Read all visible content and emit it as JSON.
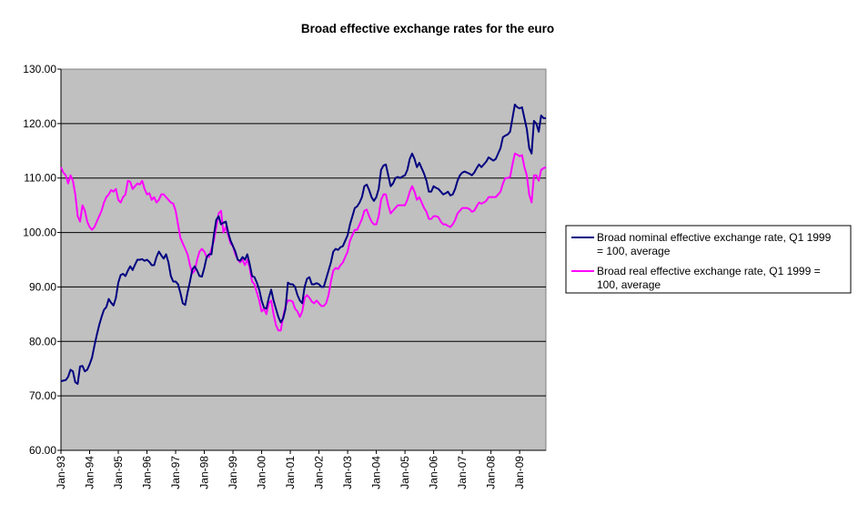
{
  "chart_data": {
    "type": "line",
    "title": "Broad effective exchange rates for the euro",
    "xlabel": "",
    "ylabel": "",
    "ylim": [
      60,
      130
    ],
    "yticks": [
      "60.00",
      "70.00",
      "80.00",
      "90.00",
      "100.00",
      "110.00",
      "120.00",
      "130.00"
    ],
    "xticks": [
      "Jan-93",
      "Jan-94",
      "Jan-95",
      "Jan-96",
      "Jan-97",
      "Jan-98",
      "Jan-99",
      "Jan-00",
      "Jan-01",
      "Jan-02",
      "Jan-03",
      "Jan-04",
      "Jan-05",
      "Jan-06",
      "Jan-07",
      "Jan-08",
      "Jan-09"
    ],
    "x_start": "Jan-93",
    "x_end": "Dec-09",
    "frequency": "monthly",
    "grid": true,
    "plot_background": "#C0C0C0",
    "legend_position": "right",
    "series": [
      {
        "name": "Broad nominal effective exchange rate, Q1 1999 = 100, average",
        "color": "#000080",
        "values": [
          72.7,
          72.8,
          72.9,
          73.5,
          74.8,
          74.5,
          72.5,
          72.2,
          75.4,
          75.5,
          74.5,
          74.8,
          75.8,
          77.0,
          79.2,
          81.2,
          83.0,
          84.5,
          85.8,
          86.3,
          87.8,
          87.1,
          86.6,
          88.0,
          90.8,
          92.2,
          92.4,
          92.0,
          93.0,
          93.8,
          93.1,
          94.1,
          95.0,
          95.0,
          95.1,
          94.8,
          95.0,
          94.6,
          94.0,
          94.0,
          95.5,
          96.5,
          95.8,
          95.2,
          96.0,
          94.5,
          92.0,
          91.0,
          91.0,
          90.5,
          88.9,
          87.0,
          86.7,
          89.0,
          91.0,
          93.2,
          93.8,
          93.0,
          92.0,
          91.9,
          93.5,
          95.5,
          96.0,
          96.0,
          99.5,
          102.3,
          103.0,
          101.5,
          101.8,
          102.0,
          100.0,
          98.5,
          97.5,
          96.5,
          95.0,
          94.8,
          95.5,
          95.0,
          96.0,
          94.2,
          92.0,
          91.8,
          90.8,
          89.5,
          87.5,
          86.2,
          86.0,
          88.0,
          89.5,
          87.5,
          86.0,
          84.5,
          83.5,
          84.2,
          86.0,
          90.8,
          90.5,
          90.5,
          90.0,
          88.5,
          87.5,
          87.0,
          90.0,
          91.5,
          91.8,
          90.5,
          90.5,
          90.7,
          90.5,
          90.0,
          90.0,
          91.5,
          93.0,
          94.5,
          96.5,
          97.0,
          96.8,
          97.3,
          97.5,
          98.5,
          99.5,
          101.5,
          103.0,
          104.5,
          104.8,
          105.5,
          106.5,
          108.5,
          108.8,
          107.8,
          106.5,
          105.8,
          106.5,
          108.0,
          111.5,
          112.3,
          112.5,
          110.5,
          108.5,
          109.0,
          110.0,
          110.2,
          110.0,
          110.3,
          110.5,
          111.5,
          113.5,
          114.5,
          113.5,
          112.0,
          112.8,
          111.8,
          110.8,
          109.5,
          107.5,
          107.5,
          108.5,
          108.2,
          108.0,
          107.5,
          107.0,
          107.2,
          107.5,
          106.8,
          107.0,
          108.0,
          109.5,
          110.5,
          111.0,
          111.2,
          111.0,
          110.8,
          110.5,
          111.0,
          111.8,
          112.5,
          112.0,
          112.5,
          113.0,
          113.8,
          113.5,
          113.2,
          113.5,
          114.5,
          115.5,
          117.5,
          117.8,
          118.0,
          118.5,
          121.0,
          123.5,
          123.0,
          122.8,
          123.0,
          121.0,
          119.0,
          115.5,
          114.5,
          120.5,
          120.0,
          118.5,
          121.5,
          121.0,
          121.0
        ]
      },
      {
        "name": "Broad real effective exchange rate, Q1 1999 = 100, average",
        "color": "#FF00FF",
        "values": [
          112.0,
          111.0,
          110.5,
          109.0,
          110.5,
          109.5,
          107.0,
          103.0,
          102.0,
          105.0,
          104.0,
          102.0,
          101.0,
          100.5,
          101.0,
          102.0,
          103.0,
          104.0,
          105.5,
          106.5,
          107.0,
          107.8,
          107.5,
          108.0,
          106.0,
          105.5,
          106.5,
          107.0,
          109.5,
          109.3,
          108.0,
          108.5,
          109.0,
          108.8,
          109.5,
          108.0,
          107.0,
          107.2,
          106.0,
          106.5,
          105.5,
          106.0,
          107.0,
          107.0,
          106.5,
          106.0,
          105.5,
          105.3,
          104.0,
          101.5,
          99.0,
          98.0,
          97.0,
          96.0,
          94.0,
          92.5,
          93.0,
          95.0,
          96.5,
          97.0,
          96.5,
          95.5,
          95.5,
          97.0,
          98.5,
          101.0,
          103.5,
          104.0,
          100.0,
          101.0,
          99.5,
          98.0,
          97.5,
          96.0,
          95.0,
          94.5,
          95.0,
          94.0,
          95.0,
          93.5,
          91.0,
          90.5,
          89.0,
          87.5,
          85.5,
          86.0,
          85.0,
          87.0,
          87.5,
          85.0,
          83.0,
          82.0,
          82.0,
          84.5,
          86.5,
          87.5,
          87.5,
          87.3,
          86.0,
          85.5,
          84.5,
          85.5,
          88.0,
          88.5,
          88.0,
          87.3,
          87.0,
          87.5,
          87.0,
          86.5,
          86.5,
          87.0,
          88.5,
          91.0,
          93.0,
          93.5,
          93.3,
          94.0,
          94.5,
          95.5,
          96.5,
          98.5,
          99.5,
          100.5,
          100.5,
          101.5,
          102.5,
          104.0,
          104.2,
          103.0,
          102.0,
          101.5,
          101.5,
          103.0,
          106.0,
          107.0,
          107.0,
          105.0,
          103.5,
          104.0,
          104.5,
          105.0,
          105.0,
          105.0,
          105.0,
          106.0,
          107.5,
          108.5,
          107.5,
          106.0,
          106.5,
          105.5,
          104.5,
          103.8,
          102.5,
          102.5,
          103.0,
          103.0,
          102.8,
          102.0,
          101.5,
          101.5,
          101.2,
          101.0,
          101.5,
          102.3,
          103.5,
          104.0,
          104.5,
          104.5,
          104.5,
          104.3,
          103.8,
          104.0,
          104.8,
          105.5,
          105.3,
          105.5,
          105.8,
          106.5,
          106.5,
          106.5,
          106.5,
          107.0,
          107.5,
          109.0,
          110.0,
          110.0,
          110.2,
          112.5,
          114.5,
          114.3,
          114.0,
          114.2,
          112.0,
          110.5,
          107.0,
          105.5,
          110.5,
          110.5,
          109.5,
          111.5,
          111.8,
          112.0
        ]
      }
    ]
  }
}
